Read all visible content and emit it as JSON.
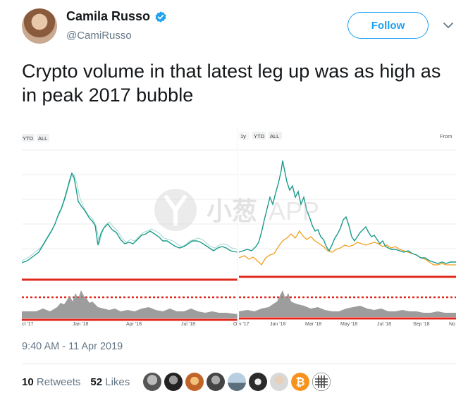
{
  "user": {
    "name": "Camila Russo",
    "handle": "@CamiRusso",
    "verified": true
  },
  "follow_label": "Follow",
  "tweet_text": "Crypto volume in that latest leg up was as high as in peak 2017 bubble",
  "chart_left": {
    "buttons": [
      "YTD",
      "ALL"
    ],
    "xticks": [
      "ct '17",
      "Jan '18",
      "Apr '18",
      "Jul '18",
      "O"
    ]
  },
  "chart_right": {
    "buttons": [
      "1y",
      "YTD",
      "ALL"
    ],
    "from_label": "From",
    "xticks": [
      "v '17",
      "Jan '18",
      "Mar '18",
      "May '18",
      "Jul '18",
      "Sep '18",
      "No"
    ]
  },
  "watermark": {
    "cn": "小葱",
    "en": "APP"
  },
  "timestamp": "9:40 AM - 11 Apr 2019",
  "stats": {
    "retweets_count": "10",
    "retweets_label": "Retweets",
    "likes_count": "52",
    "likes_label": "Likes"
  },
  "colors": {
    "accent": "#1da1f2",
    "teal_line": "#1a9a8a",
    "orange_line": "#f0a020",
    "red_marker": "#e0281c"
  },
  "likers": [
    "#6b6b6b",
    "#3a3a3a",
    "#c0642a",
    "#555555",
    "#8ab0c8",
    "#2b2b2b",
    "#d9d9d9",
    "#f7931a",
    "#444444"
  ]
}
